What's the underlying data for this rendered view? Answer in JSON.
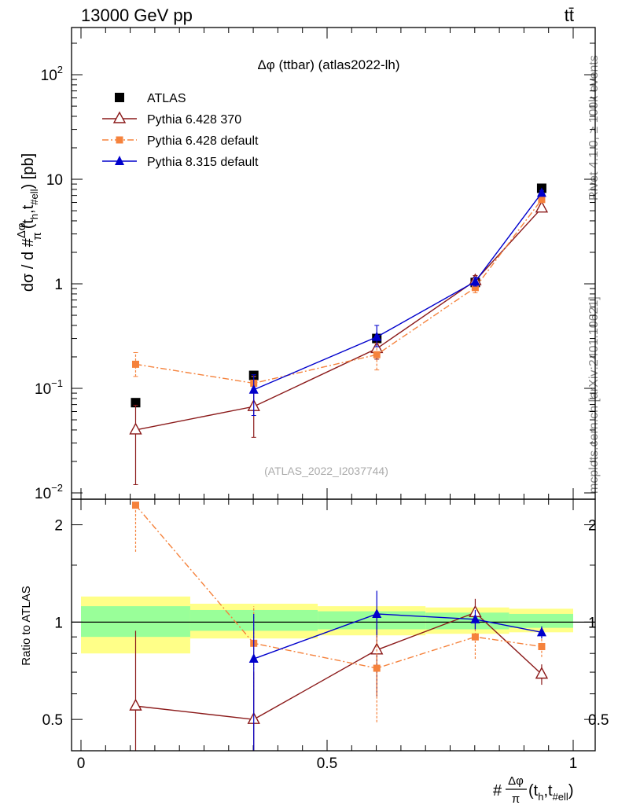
{
  "header": {
    "energy_label": "13000 GeV pp",
    "process_label": "tt̄"
  },
  "side_labels": {
    "rivet": "Rivet 4.1.0, ≥ 100k events",
    "mcplots": "mcplots.cern.ch [arXiv:2401.10621]"
  },
  "chart_data": {
    "type": "line",
    "title": "Δφ (ttbar) (atlas2022-lh)",
    "watermark": "(ATLAS_2022_I2037744)",
    "ylabel": "dσ / d #Δφ/π(t_h,t_#ell) [pb]",
    "ylabel_parts": {
      "lead": "dσ / d #",
      "num": "Δφ",
      "den": "π",
      "args": "(t",
      "sub1": "h",
      "mid": ",t",
      "sub2": "#ell",
      "tail": ") [pb]"
    },
    "xlabel": "#Δφ/π(t_h,t_#ell)",
    "xlabel_parts": {
      "lead": "#",
      "num": "Δφ",
      "den": "π",
      "args": "(t",
      "sub1": "h",
      "mid": ",t",
      "sub2": "#ell",
      "tail": ")"
    },
    "ratio_ylabel": "Ratio to ATLAS",
    "xlim": [
      0,
      1
    ],
    "ylim_log": [
      0.01,
      200
    ],
    "ratio_ylim": [
      0.4,
      2.4
    ],
    "main_ticks": [
      {
        "value": 0.01,
        "base": "10",
        "exp": "−2"
      },
      {
        "value": 0.1,
        "base": "10",
        "exp": "−1"
      },
      {
        "value": 1,
        "base": "1",
        "exp": ""
      },
      {
        "value": 10,
        "base": "10",
        "exp": ""
      },
      {
        "value": 100,
        "base": "10",
        "exp": "2"
      }
    ],
    "ratio_ticks": [
      {
        "value": 0.5,
        "label": "0.5"
      },
      {
        "value": 1,
        "label": "1"
      },
      {
        "value": 2,
        "label": "2"
      }
    ],
    "x_ticks": [
      {
        "value": 0,
        "label": "0"
      },
      {
        "value": 0.5,
        "label": "0.5"
      },
      {
        "value": 1,
        "label": "1"
      }
    ],
    "bin_edges": [
      0,
      0.222,
      0.481,
      0.7,
      0.87,
      1.0
    ],
    "band_inner": [
      [
        0.9,
        1.12
      ],
      [
        0.94,
        1.09
      ],
      [
        0.95,
        1.08
      ],
      [
        0.95,
        1.07
      ],
      [
        0.96,
        1.06
      ]
    ],
    "band_outer": [
      [
        0.8,
        1.2
      ],
      [
        0.89,
        1.14
      ],
      [
        0.91,
        1.12
      ],
      [
        0.92,
        1.11
      ],
      [
        0.93,
        1.1
      ]
    ],
    "series": [
      {
        "name": "ATLAS",
        "color": "#000000",
        "marker": "square",
        "line": "none",
        "x": [
          0.111,
          0.351,
          0.601,
          0.801,
          0.936
        ],
        "y": [
          0.073,
          0.133,
          0.3,
          1.03,
          8.2
        ],
        "ratio": [],
        "ratio_err": []
      },
      {
        "name": "Pythia 6.428 370",
        "color": "#8b1a1a",
        "marker": "triangle-open",
        "line": "solid",
        "x": [
          0.111,
          0.351,
          0.601,
          0.801,
          0.936
        ],
        "y": [
          0.04,
          0.067,
          0.24,
          1.07,
          5.3
        ],
        "y_err": [
          [
            0.012,
            0.069
          ],
          [
            0.034,
            0.1
          ],
          [
            0.19,
            0.27
          ],
          [
            0.97,
            1.2
          ],
          [
            4.95,
            5.7
          ]
        ],
        "ratio": [
          0.55,
          0.5,
          0.82,
          1.07,
          0.69
        ],
        "ratio_err": [
          [
            0.3,
            0.94
          ],
          [
            0.3,
            0.7
          ],
          [
            0.59,
            1.05
          ],
          [
            0.95,
            1.18
          ],
          [
            0.64,
            0.74
          ]
        ]
      },
      {
        "name": "Pythia 6.428 default",
        "color": "#f5823c",
        "marker": "square-small",
        "line": "dashdot",
        "x": [
          0.111,
          0.351,
          0.601,
          0.801,
          0.936
        ],
        "y": [
          0.17,
          0.112,
          0.21,
          0.92,
          6.4
        ],
        "y_err": [
          [
            0.13,
            0.22
          ],
          [
            0.09,
            0.13
          ],
          [
            0.15,
            0.27
          ],
          [
            0.82,
            1.02
          ],
          [
            6.0,
            6.8
          ]
        ],
        "ratio": [
          2.3,
          0.86,
          0.72,
          0.9,
          0.84
        ],
        "ratio_err": [
          [
            1.65,
            2.3
          ],
          [
            0.62,
            1.12
          ],
          [
            0.49,
            0.95
          ],
          [
            0.77,
            1.0
          ],
          [
            0.78,
            0.9
          ]
        ]
      },
      {
        "name": "Pythia 8.315 default",
        "color": "#0000cc",
        "marker": "triangle-filled",
        "line": "solid",
        "x": [
          0.111,
          0.351,
          0.601,
          0.801,
          0.936
        ],
        "y": [
          null,
          0.097,
          0.31,
          1.05,
          7.4
        ],
        "y_err": [
          null,
          [
            0.055,
            0.135
          ],
          [
            0.25,
            0.4
          ],
          [
            0.95,
            1.15
          ],
          [
            7.0,
            7.8
          ]
        ],
        "ratio": [
          null,
          0.77,
          1.06,
          1.02,
          0.93
        ],
        "ratio_err": [
          null,
          [
            0.3,
            1.06
          ],
          [
            0.91,
            1.25
          ],
          [
            0.95,
            1.09
          ],
          [
            0.89,
            0.97
          ]
        ]
      }
    ]
  }
}
